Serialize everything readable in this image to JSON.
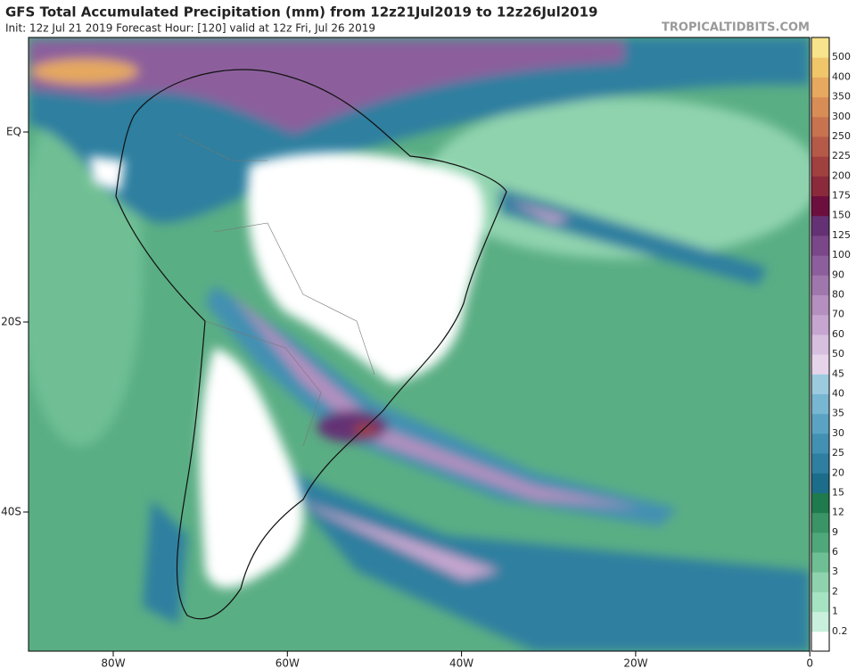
{
  "header": {
    "title": "GFS Total Accumulated Precipitation (mm) from 12z21Jul2019 to 12z26Jul2019",
    "subtitle": "Init: 12z Jul 21 2019   Forecast Hour: [120]   valid at 12z Fri, Jul 26 2019",
    "source": "TROPICALTIDBITS.COM"
  },
  "map": {
    "lat_labels": [
      "EQ",
      "20S",
      "40S"
    ],
    "lon_labels": [
      "80W",
      "60W",
      "40W",
      "20W",
      "0"
    ]
  },
  "colorbar": {
    "levels": [
      0.2,
      1,
      2,
      3,
      6,
      9,
      12,
      15,
      20,
      25,
      30,
      35,
      40,
      45,
      50,
      60,
      70,
      80,
      90,
      100,
      125,
      150,
      175,
      200,
      225,
      250,
      300,
      350,
      400,
      500
    ],
    "colors": [
      "#ffffff",
      "#c8f0dc",
      "#a6e3c3",
      "#8fd3ae",
      "#6fbf94",
      "#4fa87a",
      "#3a9466",
      "#1f7a4d",
      "#1c6d8a",
      "#2e7fa0",
      "#4290b2",
      "#5aa3c2",
      "#78b7d2",
      "#9ccbe0",
      "#e6d4ea",
      "#d7bfdf",
      "#c6a6d0",
      "#b48fbf",
      "#a077ad",
      "#8c5f9c",
      "#7a4789",
      "#643274",
      "#6d0f3e",
      "#8a2a3a",
      "#a0403f",
      "#b55a48",
      "#c8734f",
      "#d98d56",
      "#e6a95e",
      "#f0c66b",
      "#f8e48a"
    ]
  }
}
